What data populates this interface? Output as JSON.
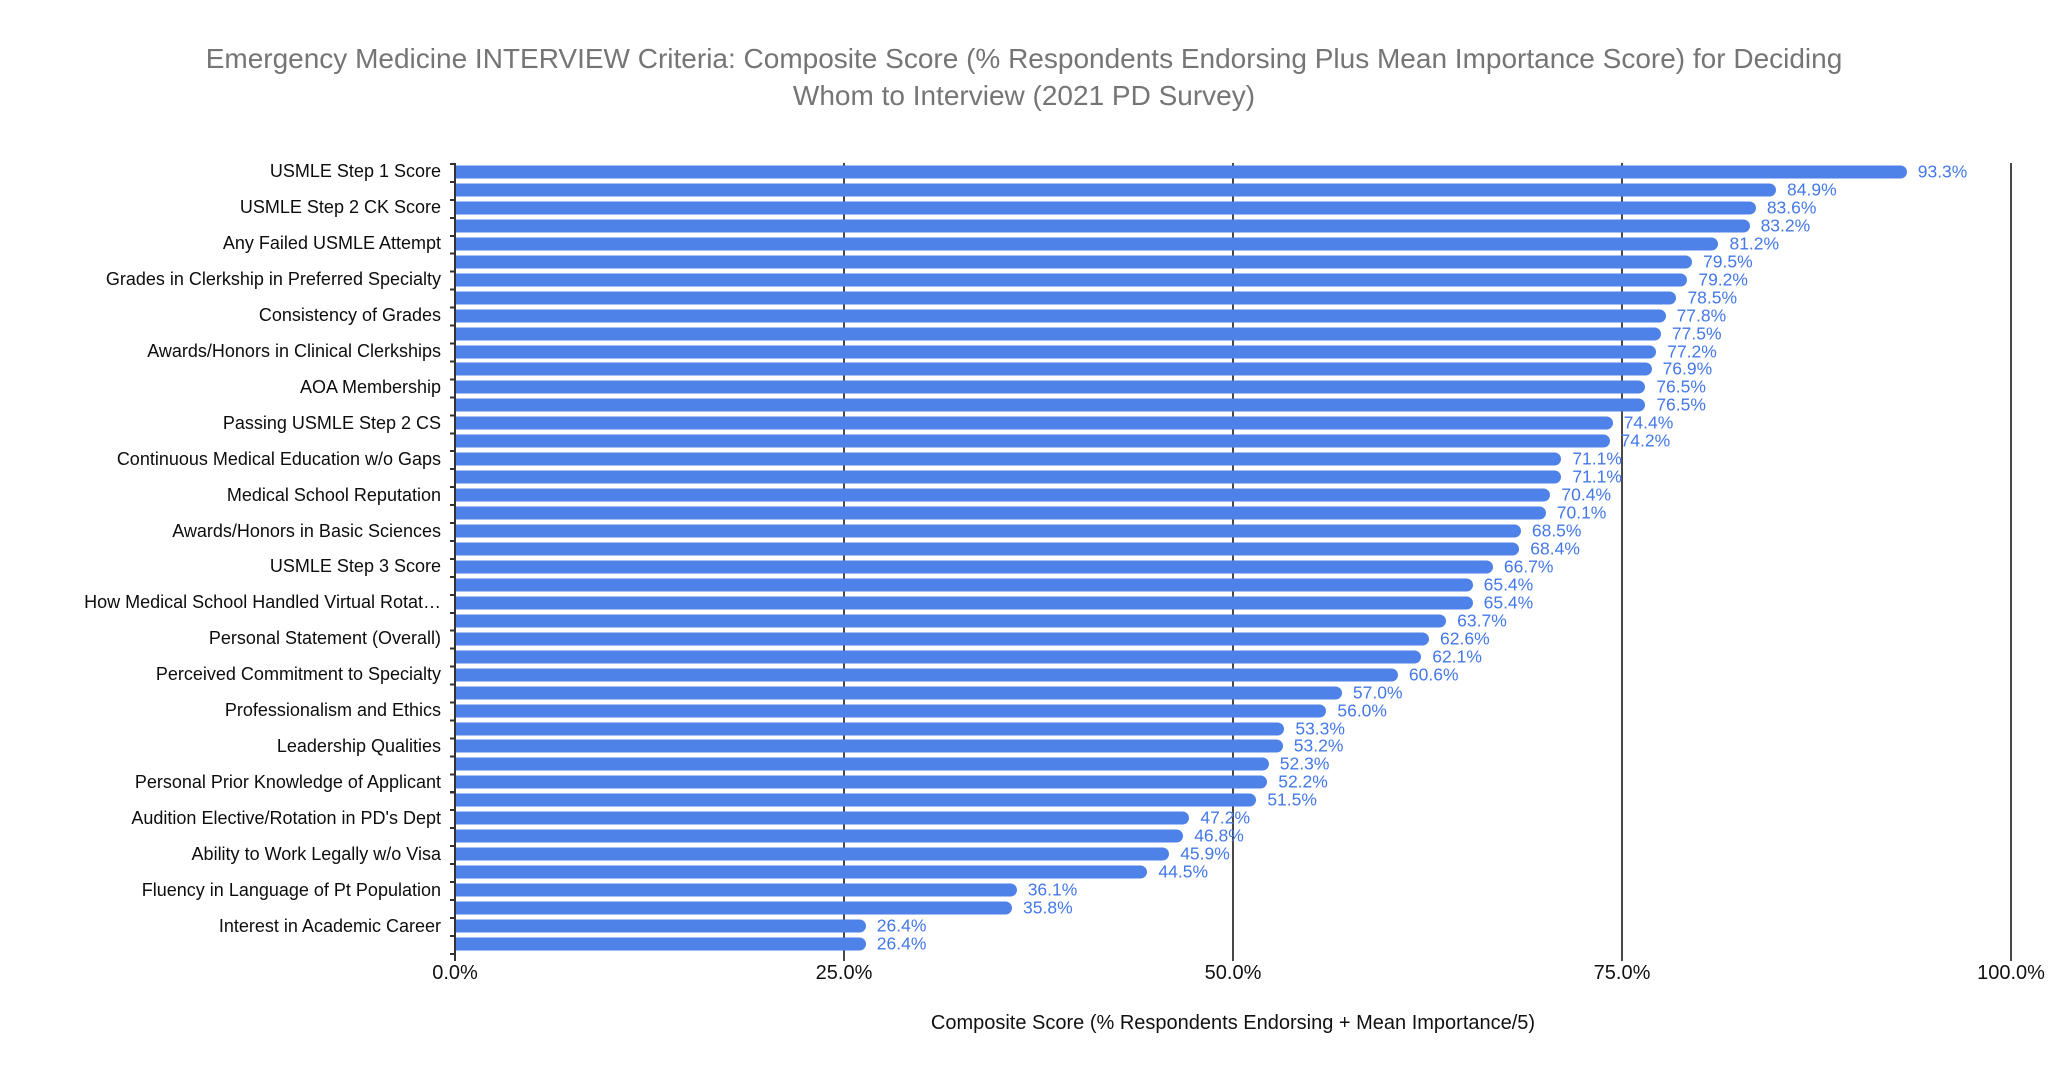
{
  "title_lines": [
    "Emergency Medicine INTERVIEW Criteria: Composite Score (% Respondents Endorsing Plus Mean Importance Score) for Deciding",
    "Whom to Interview (2021 PD Survey)"
  ],
  "colors": {
    "bar": "#4f82e8",
    "value_label_text": "#4478e8",
    "title_text": "#757575",
    "category_label_text": "#0d0d0d",
    "axis_label_text": "#111111",
    "gridline": "#484848",
    "axis_line": "#333333",
    "background": "#ffffff"
  },
  "chart_data": {
    "type": "bar",
    "orientation": "horizontal",
    "title": "Emergency Medicine INTERVIEW Criteria: Composite Score (% Respondents Endorsing Plus Mean Importance Score) for Deciding Whom to Interview (2021 PD Survey)",
    "xlabel": "Composite Score (% Respondents Endorsing + Mean Importance/5)",
    "ylabel": "",
    "xlim": [
      0,
      100
    ],
    "grid": true,
    "legend": "none",
    "value_suffix": "%",
    "value_decimals": 1,
    "x_tick_values": [
      0,
      25,
      50,
      75,
      100
    ],
    "x_tick_labels": [
      "0.0%",
      "25.0%",
      "50.0%",
      "75.0%",
      "100.0%"
    ],
    "note": "44 bars sorted descending; only every other category label is displayed on the axis (blank strings = unlabeled bars)",
    "categories": [
      "USMLE Step 1 Score",
      "",
      "USMLE Step 2 CK Score",
      "",
      "Any Failed USMLE Attempt",
      "",
      "Grades in Clerkship in Preferred Specialty",
      "",
      "Consistency of Grades",
      "",
      "Awards/Honors in Clinical Clerkships",
      "",
      "AOA Membership",
      "",
      "Passing USMLE Step 2 CS",
      "",
      "Continuous Medical Education w/o Gaps",
      "",
      "Medical School Reputation",
      "",
      "Awards/Honors in Basic Sciences",
      "",
      "USMLE Step 3 Score",
      "",
      "How Medical School Handled Virtual Rotat…",
      "",
      "Personal Statement (Overall)",
      "",
      "Perceived Commitment to Specialty",
      "",
      "Professionalism and Ethics",
      "",
      "Leadership Qualities",
      "",
      "Personal Prior Knowledge of Applicant",
      "",
      "Audition Elective/Rotation in PD's Dept",
      "",
      "Ability to Work Legally w/o Visa",
      "",
      "Fluency in Language of Pt Population",
      "",
      "Interest in Academic Career",
      ""
    ],
    "values": [
      93.3,
      84.9,
      83.6,
      83.2,
      81.2,
      79.5,
      79.2,
      78.5,
      77.8,
      77.5,
      77.2,
      76.9,
      76.5,
      76.5,
      74.4,
      74.2,
      71.1,
      71.1,
      70.4,
      70.1,
      68.5,
      68.4,
      66.7,
      65.4,
      65.4,
      63.7,
      62.6,
      62.1,
      60.6,
      57.0,
      56.0,
      53.3,
      53.2,
      52.3,
      52.2,
      51.5,
      47.2,
      46.8,
      45.9,
      44.5,
      36.1,
      35.8,
      26.4,
      26.4
    ]
  }
}
